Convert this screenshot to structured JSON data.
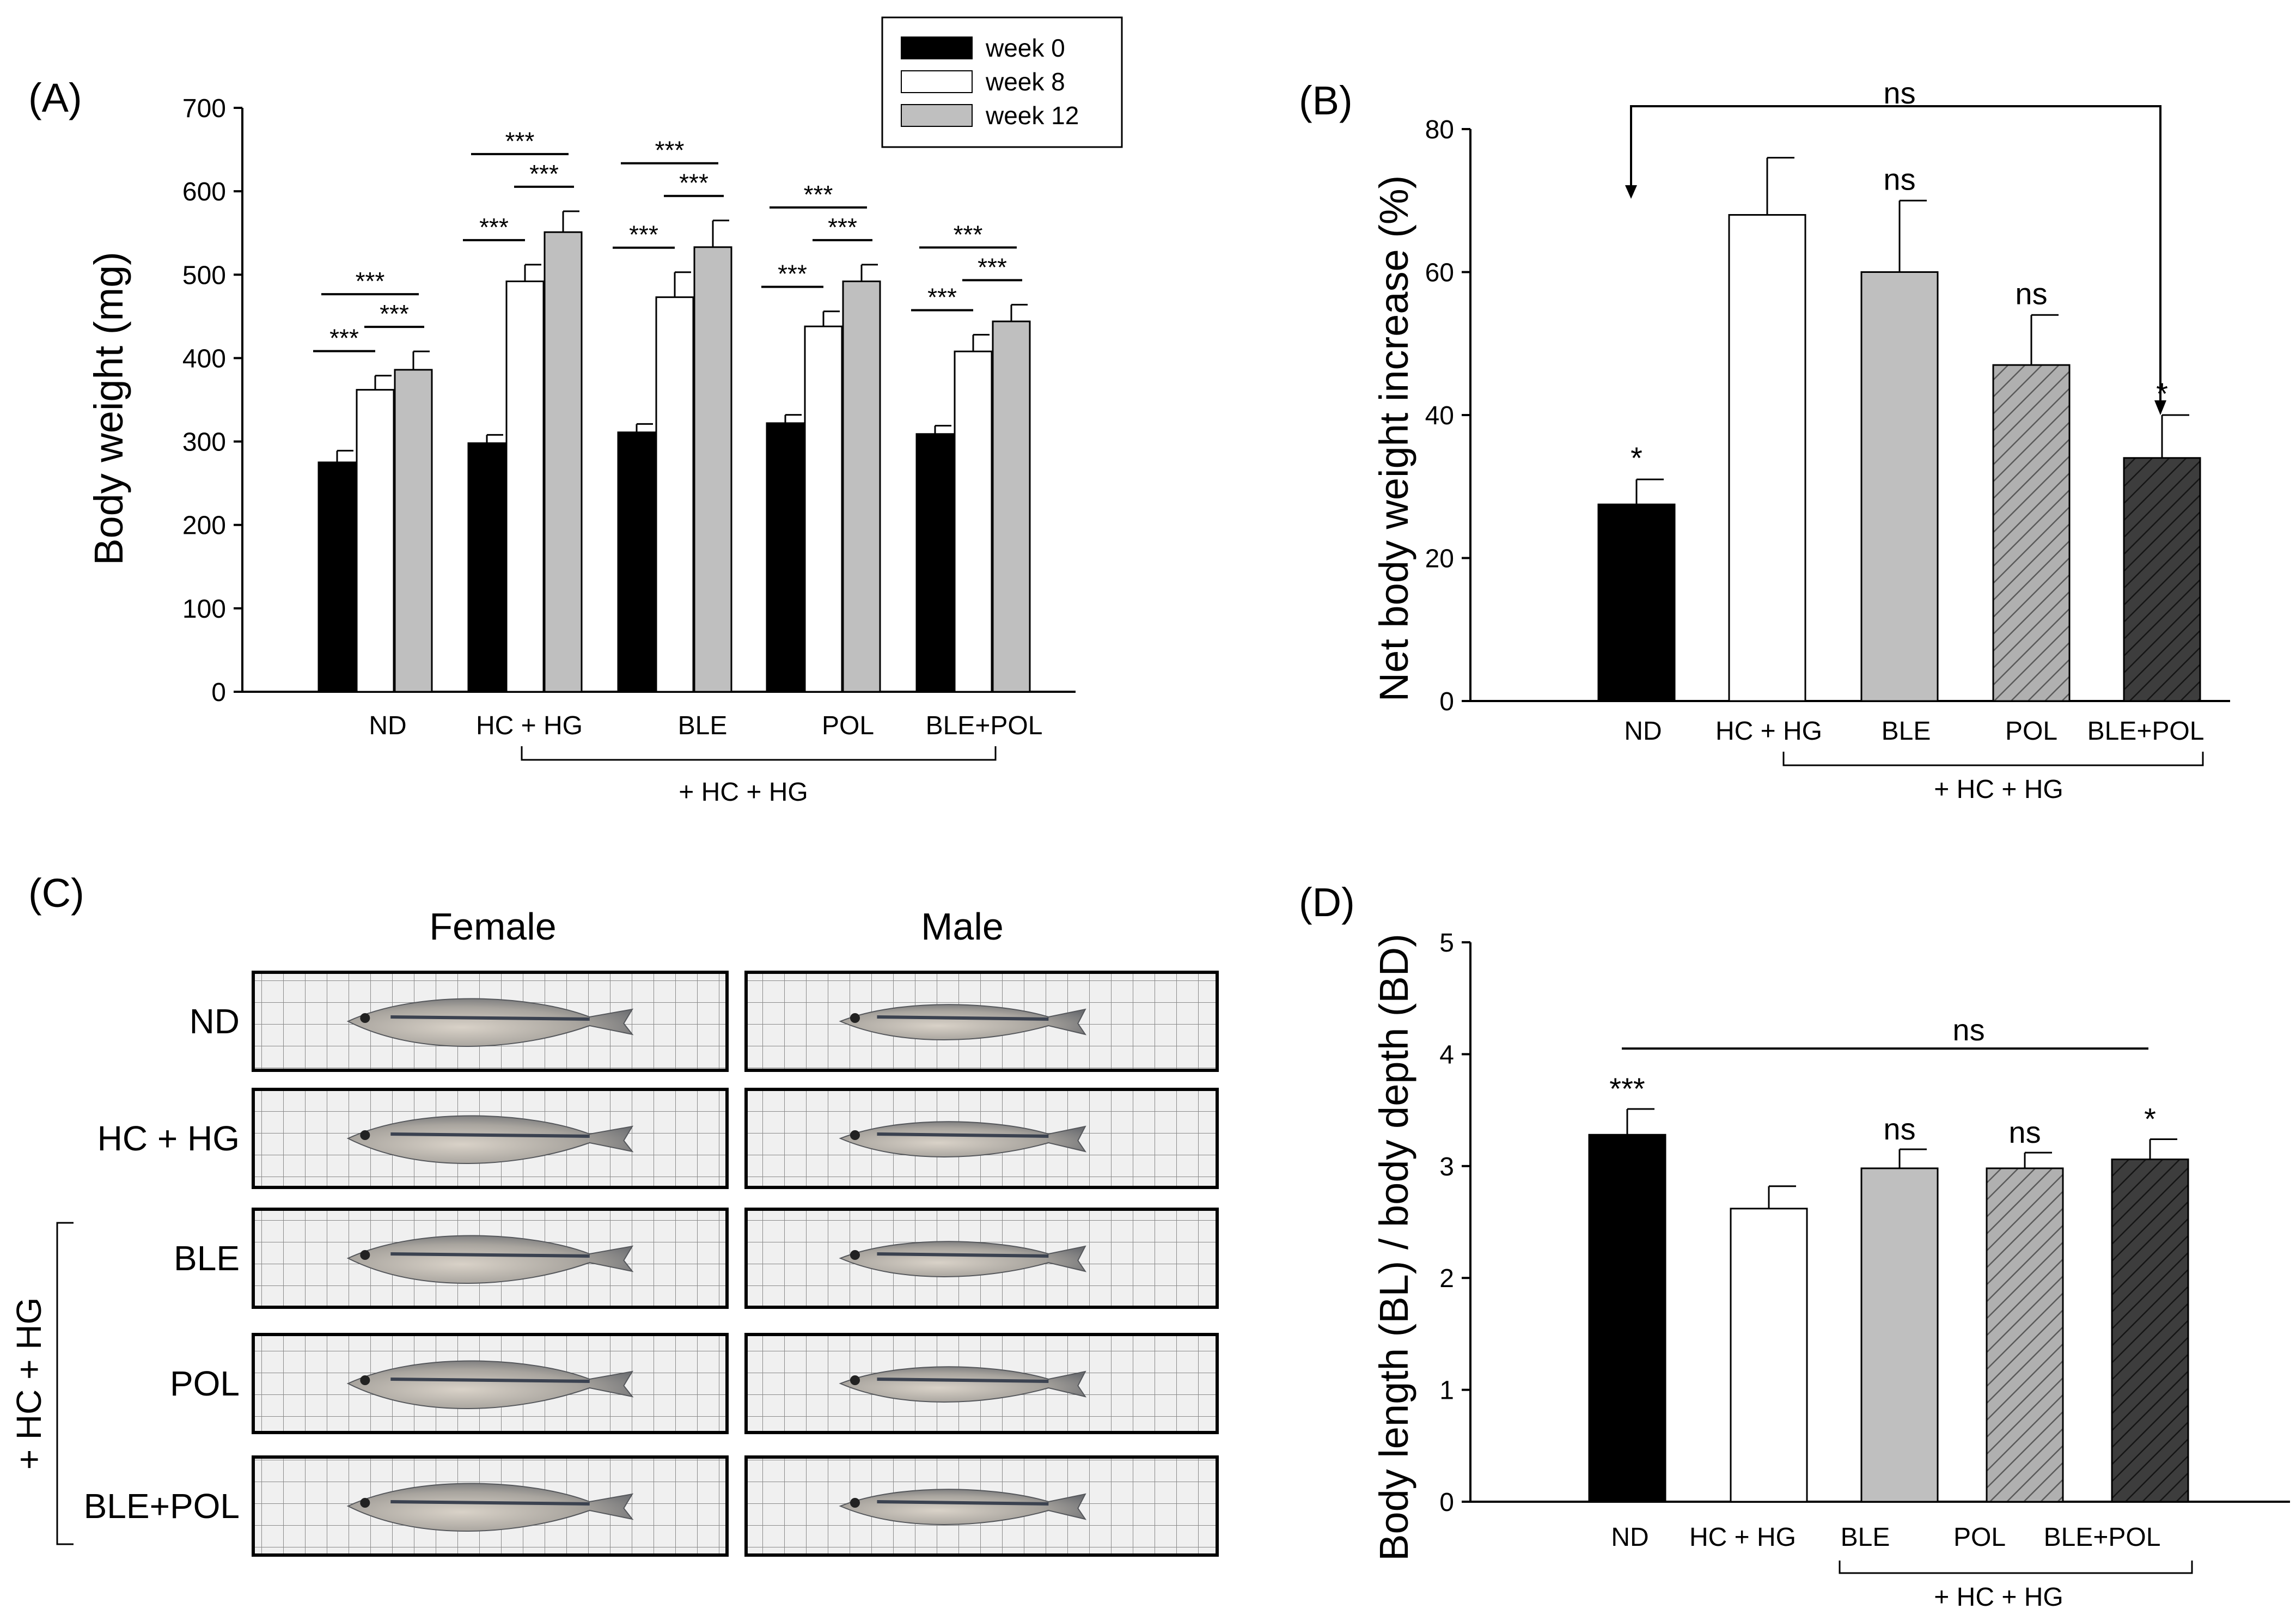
{
  "panels": {
    "A": {
      "label": "(A)"
    },
    "B": {
      "label": "(B)"
    },
    "C": {
      "label": "(C)"
    },
    "D": {
      "label": "(D)"
    }
  },
  "chart_data": [
    {
      "id": "A",
      "type": "bar",
      "ylabel": "Body weight (mg)",
      "xlabel": "",
      "ylim": [
        0,
        700
      ],
      "yticks": [
        0,
        100,
        200,
        300,
        400,
        500,
        600,
        700
      ],
      "categories": [
        "ND",
        "HC + HG",
        "BLE",
        "POL",
        "BLE+POL"
      ],
      "group_label": "+ HC + HG",
      "series": [
        {
          "name": "week 0",
          "color": "#000000",
          "values": [
            275,
            298,
            311,
            322,
            309
          ],
          "errors": [
            14,
            10,
            10,
            10,
            10
          ]
        },
        {
          "name": "week 8",
          "color": "#ffffff",
          "values": [
            362,
            492,
            473,
            438,
            408
          ],
          "errors": [
            17,
            20,
            30,
            18,
            20
          ]
        },
        {
          "name": "week 12",
          "color": "#bfbfbf",
          "values": [
            386,
            551,
            533,
            492,
            444
          ],
          "errors": [
            22,
            25,
            32,
            20,
            20
          ]
        }
      ],
      "legend_position": "top",
      "significance": [
        {
          "label": "***"
        },
        {
          "label": "***"
        },
        {
          "label": "***"
        },
        {
          "label": "***"
        },
        {
          "label": "***"
        },
        {
          "label": "***"
        },
        {
          "label": "***"
        },
        {
          "label": "***"
        },
        {
          "label": "***"
        },
        {
          "label": "***"
        },
        {
          "label": "***"
        },
        {
          "label": "***"
        },
        {
          "label": "***"
        },
        {
          "label": "***"
        },
        {
          "label": "***"
        }
      ]
    },
    {
      "id": "B",
      "type": "bar",
      "ylabel": "Net body weight increase (%)",
      "xlabel": "",
      "ylim": [
        0,
        80
      ],
      "yticks": [
        0,
        20,
        40,
        60,
        80
      ],
      "categories": [
        "ND",
        "HC + HG",
        "BLE",
        "POL",
        "BLE+POL"
      ],
      "group_label": "+ HC + HG",
      "values": [
        27.5,
        68,
        60,
        47,
        34
      ],
      "errors": [
        3.5,
        8,
        10,
        7,
        6
      ],
      "fills": [
        "black",
        "white",
        "gray",
        "hatch-light",
        "hatch-dark"
      ],
      "marks": [
        "*",
        "",
        "ns",
        "ns",
        "*"
      ],
      "bracket_label": "ns"
    },
    {
      "id": "D",
      "type": "bar",
      "ylabel": "Body length (BL) / body depth (BD)",
      "xlabel": "",
      "ylim": [
        0,
        5
      ],
      "yticks": [
        0,
        1,
        2,
        3,
        4,
        5
      ],
      "categories": [
        "ND",
        "HC + HG",
        "BLE",
        "POL",
        "BLE+POL"
      ],
      "group_label": "+ HC + HG",
      "values": [
        3.28,
        2.62,
        2.98,
        2.98,
        3.06
      ],
      "errors": [
        0.23,
        0.2,
        0.17,
        0.14,
        0.18
      ],
      "fills": [
        "black",
        "white",
        "gray",
        "hatch-light",
        "hatch-dark"
      ],
      "marks": [
        "***",
        "",
        "ns",
        "ns",
        "*"
      ],
      "line_label": "ns"
    }
  ],
  "photos": {
    "column_headers": [
      "Female",
      "Male"
    ],
    "rows": [
      "ND",
      "HC + HG",
      "BLE",
      "POL",
      "BLE+POL"
    ],
    "group_label": "+ HC + HG"
  }
}
